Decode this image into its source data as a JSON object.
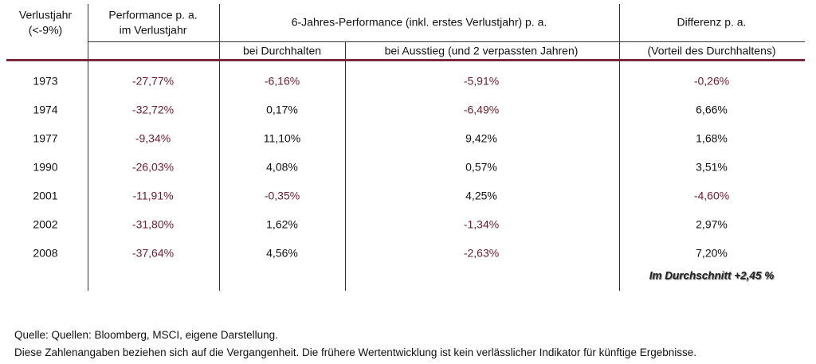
{
  "header": {
    "row1": [
      [
        "Verlustjahr",
        "(<-9%)"
      ],
      [
        "Performance p. a.",
        "im Verlustjahr"
      ],
      [
        "6-Jahres-Performance (inkl. erstes Verlustjahr) p. a."
      ],
      [
        "Differenz p. a."
      ]
    ],
    "row2": [
      "bei Durchhalten",
      "bei Ausstieg (und 2 verpassten Jahren)",
      "(Vorteil des Durchhaltens)"
    ]
  },
  "table": {
    "rows": [
      [
        "1973",
        "-27,77%",
        "-6,16%",
        "-5,91%",
        "-0,26%"
      ],
      [
        "1974",
        "-32,72%",
        "0,17%",
        "-6,49%",
        "6,66%"
      ],
      [
        "1977",
        "-9,34%",
        "11,10%",
        "9,42%",
        "1,68%"
      ],
      [
        "1990",
        "-26,03%",
        "4,08%",
        "0,57%",
        "3,51%"
      ],
      [
        "2001",
        "-11,91%",
        "-0,35%",
        "4,25%",
        "-4,60%"
      ],
      [
        "2002",
        "-31,80%",
        "1,62%",
        "-1,34%",
        "2,97%"
      ],
      [
        "2008",
        "-37,64%",
        "4,56%",
        "-2,63%",
        "7,20%"
      ]
    ]
  },
  "summary": "Im Durchschnitt +2,45 %",
  "footer": [
    "Quelle: Quellen: Bloomberg, MSCI, eigene Darstellung.",
    "Diese Zahlenangaben beziehen sich auf die Vergangenheit. Die frühere Wertentwicklung ist kein verlässlicher Indikator für künftige Ergebnisse."
  ]
}
